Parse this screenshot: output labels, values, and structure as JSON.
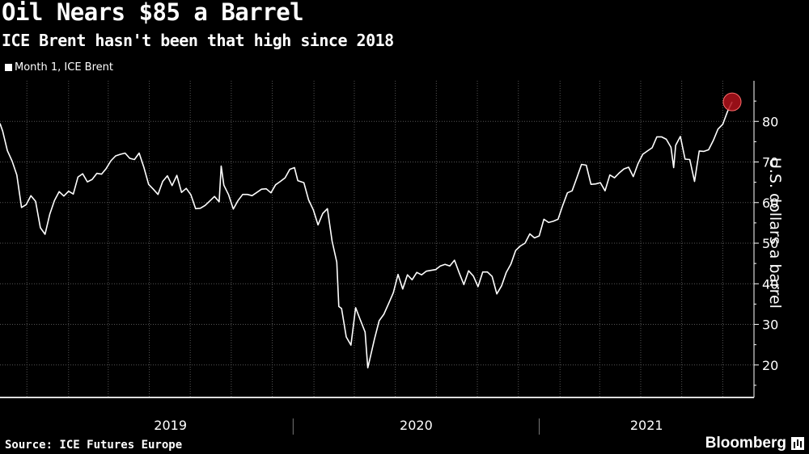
{
  "title": "Oil Nears $85 a Barrel",
  "subtitle": "ICE Brent hasn't been that high since 2018",
  "source": "Source: ICE Futures Europe",
  "brand": "Bloomberg",
  "colors": {
    "background": "#000000",
    "line": "#ffffff",
    "grid": "#555555",
    "highlight": "#b0121b"
  },
  "chart_data": {
    "type": "line",
    "legend": [
      "Month 1, ICE Brent"
    ],
    "legend_position": "top-left",
    "ylabel": "U.S. dollars a barrel",
    "y_ticks": [
      20,
      30,
      40,
      50,
      60,
      70,
      80
    ],
    "ylim": [
      12,
      90
    ],
    "x_ticks": [
      "2019",
      "2020",
      "2021"
    ],
    "xlim": [
      "2018-10-22",
      "2021-10-15"
    ],
    "grid": true,
    "highlight_point": {
      "x": "2021-10-15",
      "y": 84.8
    },
    "series": [
      {
        "name": "Month 1, ICE Brent",
        "x": [
          "2018-10-22",
          "2018-10-26",
          "2018-11-02",
          "2018-11-09",
          "2018-11-16",
          "2018-11-23",
          "2018-11-30",
          "2018-12-07",
          "2018-12-14",
          "2018-12-21",
          "2018-12-28",
          "2019-01-04",
          "2019-01-11",
          "2019-01-18",
          "2019-01-25",
          "2019-02-01",
          "2019-02-08",
          "2019-02-15",
          "2019-02-22",
          "2019-03-01",
          "2019-03-08",
          "2019-03-15",
          "2019-03-22",
          "2019-03-29",
          "2019-04-05",
          "2019-04-12",
          "2019-04-19",
          "2019-04-26",
          "2019-05-03",
          "2019-05-10",
          "2019-05-17",
          "2019-05-24",
          "2019-05-31",
          "2019-06-07",
          "2019-06-14",
          "2019-06-21",
          "2019-06-28",
          "2019-07-05",
          "2019-07-12",
          "2019-07-19",
          "2019-07-26",
          "2019-08-02",
          "2019-08-09",
          "2019-08-16",
          "2019-08-23",
          "2019-08-30",
          "2019-09-06",
          "2019-09-13",
          "2019-09-16",
          "2019-09-20",
          "2019-09-27",
          "2019-10-04",
          "2019-10-11",
          "2019-10-18",
          "2019-10-25",
          "2019-11-01",
          "2019-11-08",
          "2019-11-15",
          "2019-11-22",
          "2019-11-29",
          "2019-12-06",
          "2019-12-13",
          "2019-12-20",
          "2019-12-27",
          "2020-01-03",
          "2020-01-08",
          "2020-01-17",
          "2020-01-24",
          "2020-01-31",
          "2020-02-07",
          "2020-02-14",
          "2020-02-21",
          "2020-02-28",
          "2020-03-06",
          "2020-03-09",
          "2020-03-13",
          "2020-03-20",
          "2020-03-27",
          "2020-04-03",
          "2020-04-09",
          "2020-04-17",
          "2020-04-21",
          "2020-04-24",
          "2020-05-01",
          "2020-05-08",
          "2020-05-15",
          "2020-05-22",
          "2020-05-29",
          "2020-06-05",
          "2020-06-12",
          "2020-06-19",
          "2020-06-26",
          "2020-07-03",
          "2020-07-10",
          "2020-07-17",
          "2020-07-24",
          "2020-07-31",
          "2020-08-07",
          "2020-08-14",
          "2020-08-21",
          "2020-08-28",
          "2020-09-04",
          "2020-09-11",
          "2020-09-18",
          "2020-09-25",
          "2020-10-02",
          "2020-10-09",
          "2020-10-16",
          "2020-10-23",
          "2020-10-30",
          "2020-11-06",
          "2020-11-13",
          "2020-11-20",
          "2020-11-27",
          "2020-12-04",
          "2020-12-11",
          "2020-12-18",
          "2020-12-25",
          "2021-01-01",
          "2021-01-08",
          "2021-01-15",
          "2021-01-22",
          "2021-01-29",
          "2021-02-05",
          "2021-02-12",
          "2021-02-19",
          "2021-02-26",
          "2021-03-05",
          "2021-03-12",
          "2021-03-19",
          "2021-03-26",
          "2021-04-02",
          "2021-04-09",
          "2021-04-16",
          "2021-04-23",
          "2021-04-30",
          "2021-05-07",
          "2021-05-14",
          "2021-05-21",
          "2021-05-28",
          "2021-06-04",
          "2021-06-11",
          "2021-06-18",
          "2021-06-25",
          "2021-07-02",
          "2021-07-09",
          "2021-07-16",
          "2021-07-20",
          "2021-07-23",
          "2021-07-30",
          "2021-08-06",
          "2021-08-13",
          "2021-08-20",
          "2021-08-27",
          "2021-09-03",
          "2021-09-10",
          "2021-09-17",
          "2021-09-24",
          "2021-10-01",
          "2021-10-08",
          "2021-10-15"
        ],
        "values": [
          79.5,
          77.6,
          72.8,
          70.2,
          66.8,
          58.8,
          59.5,
          61.7,
          60.3,
          53.8,
          52.2,
          57.1,
          60.5,
          62.7,
          61.6,
          62.8,
          62.1,
          66.3,
          67.1,
          65.1,
          65.7,
          67.2,
          67.0,
          68.4,
          70.3,
          71.5,
          71.9,
          72.2,
          70.9,
          70.6,
          72.2,
          68.7,
          64.5,
          63.3,
          62.0,
          65.2,
          66.6,
          64.2,
          66.7,
          62.5,
          63.5,
          61.9,
          58.5,
          58.6,
          59.3,
          60.4,
          61.5,
          60.2,
          69.0,
          64.3,
          61.9,
          58.4,
          60.5,
          62.0,
          62.0,
          61.7,
          62.5,
          63.3,
          63.4,
          62.4,
          64.4,
          65.2,
          66.1,
          68.2,
          68.6,
          65.4,
          64.9,
          60.7,
          58.2,
          54.5,
          57.3,
          58.5,
          50.5,
          45.3,
          34.4,
          33.9,
          26.9,
          24.9,
          34.1,
          31.5,
          28.1,
          19.3,
          21.4,
          26.4,
          30.9,
          32.5,
          35.1,
          37.8,
          42.3,
          38.7,
          42.2,
          41.0,
          42.8,
          42.2,
          43.1,
          43.3,
          43.5,
          44.4,
          44.8,
          44.4,
          45.8,
          42.7,
          39.8,
          43.2,
          41.9,
          39.3,
          42.9,
          42.9,
          41.8,
          37.5,
          39.5,
          42.8,
          44.9,
          48.2,
          49.3,
          50.0,
          52.3,
          51.3,
          51.8,
          55.9,
          55.1,
          55.4,
          55.9,
          59.3,
          62.4,
          62.9,
          66.1,
          69.4,
          69.2,
          64.5,
          64.6,
          64.9,
          62.9,
          66.8,
          66.1,
          67.3,
          68.3,
          68.7,
          66.4,
          69.6,
          71.9,
          72.7,
          73.5,
          76.2,
          76.2,
          75.6,
          73.6,
          68.6,
          74.1,
          76.3,
          70.7,
          70.6,
          65.2,
          72.7,
          72.6,
          73.0,
          75.3,
          78.1,
          79.3,
          82.4,
          84.8
        ]
      }
    ]
  }
}
